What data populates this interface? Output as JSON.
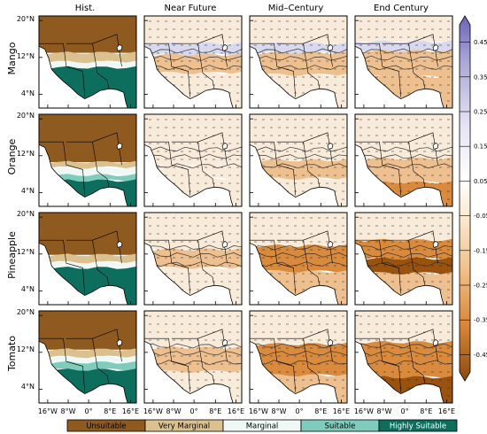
{
  "columns": [
    "Hist.",
    "Near Future",
    "Mid–Century",
    "End Century"
  ],
  "rows": [
    "Mango",
    "Orange",
    "Pineapple",
    "Tomato"
  ],
  "lat_ticks": [
    "20°N",
    "12°N",
    "4°N"
  ],
  "lon_ticks": [
    "16°W",
    "8°W",
    "0°",
    "8°E",
    "16°E"
  ],
  "colorbar": {
    "ticks": [
      "0.45",
      "0.35",
      "0.25",
      "0.15",
      "0.05",
      "-0.05",
      "-0.15",
      "-0.25",
      "-0.35",
      "-0.45"
    ],
    "range": [
      -0.5,
      0.5
    ],
    "colors": {
      "high": "#6a63b5",
      "mid": "#ffffff",
      "low": "#8c4a0c"
    }
  },
  "legend": [
    {
      "label": "Unsuitable",
      "color": "#8f5a1f",
      "text_color": "#000000"
    },
    {
      "label": "Very Marginal",
      "color": "#dcc190",
      "text_color": "#000000"
    },
    {
      "label": "Marginal",
      "color": "#f0f8f6",
      "text_color": "#000000"
    },
    {
      "label": "Suitable",
      "color": "#7fccbc",
      "text_color": "#000000"
    },
    {
      "label": "Highly Suitable",
      "color": "#0e6e5e",
      "text_color": "#ffffff"
    }
  ],
  "hist_colors": {
    "unsuitable": "#8f5a1f",
    "very_marginal": "#dcc190",
    "marginal": "#f0f8f6",
    "suitable": "#7fccbc",
    "highly_suitable": "#0e6e5e",
    "ocean": "#ffffff"
  },
  "change_colors": {
    "light": "#f9ebd9",
    "medium": "#eec08f",
    "strong": "#d98a3c",
    "dark": "#9a520f",
    "gain": "#d8d8ef"
  }
}
